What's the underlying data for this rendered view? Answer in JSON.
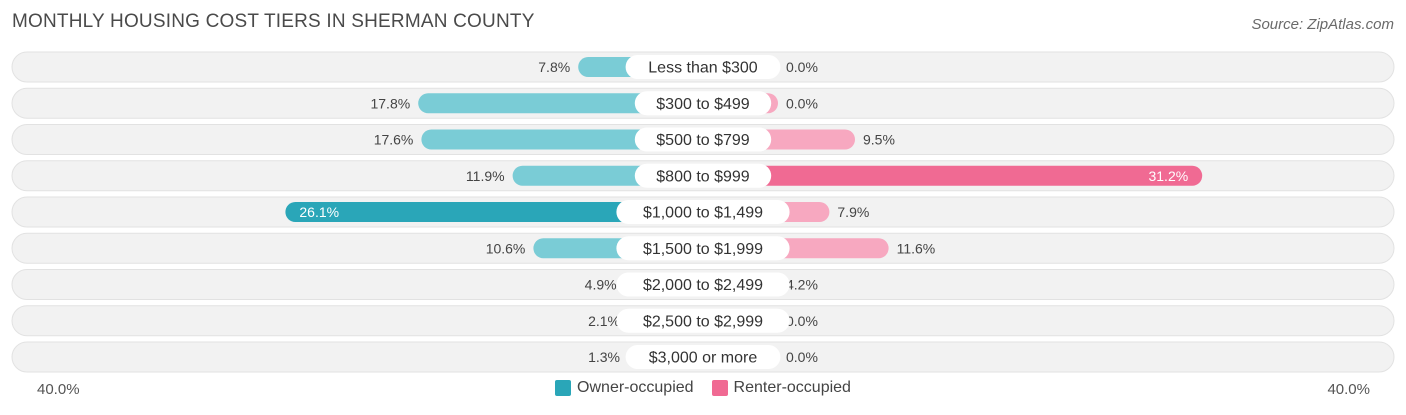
{
  "header": {
    "title": "MONTHLY HOUSING COST TIERS IN SHERMAN COUNTY",
    "source": "Source: ZipAtlas.com"
  },
  "axis": {
    "left_label": "40.0%",
    "right_label": "40.0%"
  },
  "legend": [
    {
      "label": "Owner-occupied",
      "color": "#2aa6b8"
    },
    {
      "label": "Renter-occupied",
      "color": "#f06a93"
    }
  ],
  "colors": {
    "owner": "#7accd6",
    "owner_strong": "#2aa6b8",
    "renter": "#f7a8c0",
    "renter_strong": "#f06a93"
  },
  "chart_data": {
    "type": "bar",
    "orientation": "diverging-horizontal",
    "title": "MONTHLY HOUSING COST TIERS IN SHERMAN COUNTY",
    "categories": [
      "Less than $300",
      "$300 to $499",
      "$500 to $799",
      "$800 to $999",
      "$1,000 to $1,499",
      "$1,500 to $1,999",
      "$2,000 to $2,499",
      "$2,500 to $2,999",
      "$3,000 or more"
    ],
    "series": [
      {
        "name": "Owner-occupied",
        "side": "left",
        "values": [
          7.8,
          17.8,
          17.6,
          11.9,
          26.1,
          10.6,
          4.9,
          2.1,
          1.3
        ],
        "labels": [
          "7.8%",
          "17.8%",
          "17.6%",
          "11.9%",
          "26.1%",
          "10.6%",
          "4.9%",
          "2.1%",
          "1.3%"
        ]
      },
      {
        "name": "Renter-occupied",
        "side": "right",
        "values": [
          0.0,
          0.0,
          9.5,
          31.2,
          7.9,
          11.6,
          4.2,
          0.0,
          0.0
        ],
        "labels": [
          "0.0%",
          "0.0%",
          "9.5%",
          "31.2%",
          "7.9%",
          "11.6%",
          "4.2%",
          "0.0%",
          "0.0%"
        ]
      }
    ],
    "xlim": [
      -40,
      40
    ],
    "xlabel_left": "40.0%",
    "xlabel_right": "40.0%",
    "legend_position": "bottom-center"
  }
}
